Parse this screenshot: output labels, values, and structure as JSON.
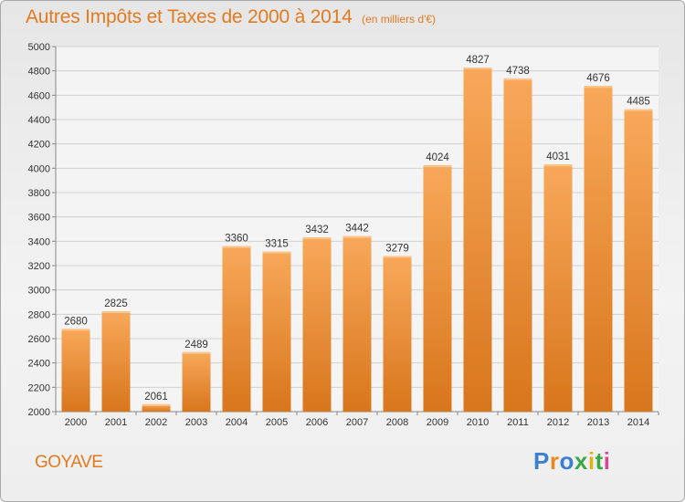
{
  "title": "Autres Impôts et Taxes de 2000 à 2014",
  "unit_note": "(en milliers d'€)",
  "commune": "GOYAVE",
  "logo": {
    "letters": [
      "P",
      "r",
      "o",
      "x",
      "i",
      "t",
      "i"
    ],
    "colors": [
      "#3b7fd0",
      "#e98a1c",
      "#3b7fd0",
      "#3aa64a",
      "#e0b21a",
      "#3aa64a",
      "#d14a9a"
    ]
  },
  "colors": {
    "accent": "#e07b22",
    "bar_top": "#f8a85a",
    "bar_bottom": "#d8761c"
  },
  "chart_data": {
    "type": "bar",
    "categories": [
      "2000",
      "2001",
      "2002",
      "2003",
      "2004",
      "2005",
      "2006",
      "2007",
      "2008",
      "2009",
      "2010",
      "2011",
      "2012",
      "2013",
      "2014"
    ],
    "values": [
      2680,
      2825,
      2061,
      2489,
      3360,
      3315,
      3432,
      3442,
      3279,
      4024,
      4827,
      4738,
      4031,
      4676,
      4485
    ],
    "yticks": [
      2000,
      2200,
      2400,
      2600,
      2800,
      3000,
      3200,
      3400,
      3600,
      3800,
      4000,
      4200,
      4400,
      4600,
      4800,
      5000
    ],
    "ylim": [
      2000,
      5000
    ],
    "xlabel": "",
    "ylabel": "",
    "grid": true
  }
}
